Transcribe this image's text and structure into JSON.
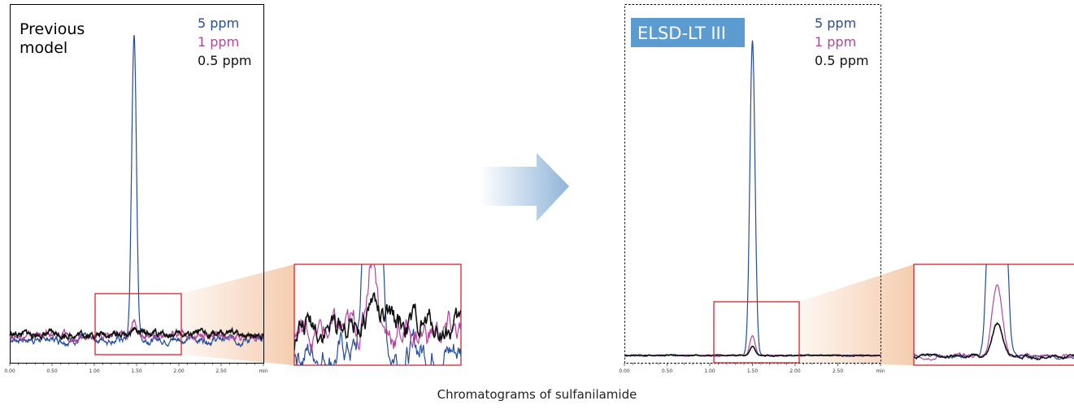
{
  "caption": "Chromatograms of sulfanilamide",
  "colors": {
    "blue": "#244b9c",
    "magenta": "#b0479e",
    "black": "#111111",
    "zoom_box": "#d7222e",
    "badge": "#5b9bd0",
    "arrow": "#8fb4d8",
    "zoom_fan": "#f4c7a6"
  },
  "chart_data": [
    {
      "type": "line",
      "title": "",
      "panel_label": [
        "Previous",
        "model"
      ],
      "xlabel": "min",
      "ylabel": "",
      "xlim": [
        0.0,
        3.0
      ],
      "x_ticks": [
        "0.00",
        "0.50",
        "1.00",
        "1.50",
        "2.00",
        "2.50"
      ],
      "x_unit_label": "min",
      "legend_position": "top-right",
      "border": "solid",
      "zoom_window": {
        "x": [
          1.0,
          2.0
        ]
      },
      "series": [
        {
          "name": "5 ppm",
          "color": "#244b9c",
          "peak_time": 1.47,
          "peak_height": 1.0,
          "baseline": 0.0,
          "noise": 0.01
        },
        {
          "name": "1 ppm",
          "color": "#b0479e",
          "peak_time": 1.47,
          "peak_height": 0.06,
          "baseline": 0.012,
          "noise": 0.01
        },
        {
          "name": "0.5 ppm",
          "color": "#111111",
          "peak_time": 1.47,
          "peak_height": 0.02,
          "baseline": 0.016,
          "noise": 0.009
        }
      ]
    },
    {
      "type": "line",
      "title": "",
      "panel_label": [
        "ELSD-LT III"
      ],
      "xlabel": "min",
      "ylabel": "",
      "xlim": [
        0.0,
        3.0
      ],
      "x_ticks": [
        "0.00",
        "0.50",
        "1.00",
        "1.50",
        "2.00",
        "2.50"
      ],
      "x_unit_label": "min",
      "legend_position": "top-right",
      "border": "dashed",
      "zoom_window": {
        "x": [
          1.0,
          2.0
        ]
      },
      "series": [
        {
          "name": "5 ppm",
          "color": "#244b9c",
          "peak_time": 1.5,
          "peak_height": 1.0,
          "baseline": 0.0,
          "noise": 0.0015
        },
        {
          "name": "1 ppm",
          "color": "#b0479e",
          "peak_time": 1.5,
          "peak_height": 0.065,
          "baseline": 0.0,
          "noise": 0.0015
        },
        {
          "name": "0.5 ppm",
          "color": "#111111",
          "peak_time": 1.5,
          "peak_height": 0.028,
          "baseline": 0.0,
          "noise": 0.0015
        }
      ]
    }
  ]
}
